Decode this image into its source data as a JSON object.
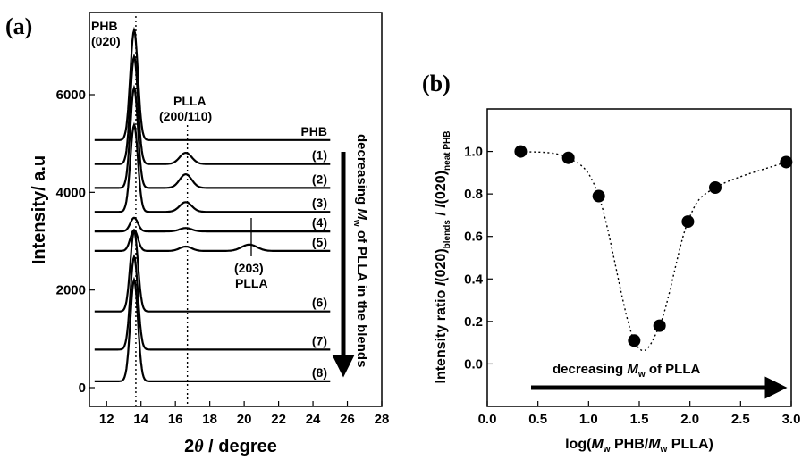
{
  "panel_a_label": "(a)",
  "panel_b_label": "(b)",
  "chart_data": [
    {
      "type": "line",
      "panel": "(a)",
      "xlabel": "2θ / degree",
      "ylabel": "Intensity/ a.u",
      "xlim": [
        11,
        28
      ],
      "xticks": [
        "12",
        "14",
        "16",
        "18",
        "20",
        "22",
        "24",
        "26",
        "28"
      ],
      "yticks": [
        "0",
        "2000",
        "4000",
        "6000"
      ],
      "peak_labels": {
        "phb_020": [
          "PHB",
          "(020)"
        ],
        "plla_200_110": [
          "PLLA",
          "(200/110)"
        ],
        "plla_203": [
          "(203)",
          "PLLA"
        ]
      },
      "arrow_label": "decreasing M_w of PLLA in the blends",
      "series": [
        {
          "name": "PHB",
          "offset": 5070,
          "peak_020": 2250,
          "peak_200": 0,
          "peak_203": 0
        },
        {
          "name": "(1)",
          "offset": 4580,
          "peak_020": 2200,
          "peak_200": 230,
          "peak_203": 0
        },
        {
          "name": "(2)",
          "offset": 4090,
          "peak_020": 2050,
          "peak_200": 280,
          "peak_203": 0
        },
        {
          "name": "(3)",
          "offset": 3600,
          "peak_020": 1780,
          "peak_200": 200,
          "peak_203": 0
        },
        {
          "name": "(4)",
          "offset": 3200,
          "peak_020": 280,
          "peak_200": 70,
          "peak_203": 0
        },
        {
          "name": "(5)",
          "offset": 2800,
          "peak_020": 430,
          "peak_200": 90,
          "peak_203": 130
        },
        {
          "name": "(6)",
          "offset": 1560,
          "peak_020": 1650,
          "peak_200": 0,
          "peak_203": 0
        },
        {
          "name": "(7)",
          "offset": 780,
          "peak_020": 1900,
          "peak_200": 0,
          "peak_203": 0
        },
        {
          "name": "(8)",
          "offset": 130,
          "peak_020": 2080,
          "peak_200": 0,
          "peak_203": 0
        }
      ],
      "reference_lines_2theta": [
        13.7,
        16.7
      ]
    },
    {
      "type": "scatter",
      "panel": "(b)",
      "xlabel": "log(M_w PHB/M_w PLLA)",
      "ylabel": "Intensity ratio I(020)_blends / I(020)_neat PHB",
      "xlim": [
        0.0,
        3.0
      ],
      "ylim": [
        -0.2,
        1.2
      ],
      "xticks": [
        "0.0",
        "0.5",
        "1.0",
        "1.5",
        "2.0",
        "2.5",
        "3.0"
      ],
      "yticks": [
        "0.0",
        "0.2",
        "0.4",
        "0.6",
        "0.8",
        "1.0"
      ],
      "arrow_label": "decreasing M_w of PLLA",
      "x": [
        0.33,
        0.8,
        1.1,
        1.45,
        1.7,
        1.98,
        2.25,
        2.95
      ],
      "y": [
        1.0,
        0.97,
        0.79,
        0.11,
        0.18,
        0.67,
        0.83,
        0.95
      ]
    }
  ]
}
